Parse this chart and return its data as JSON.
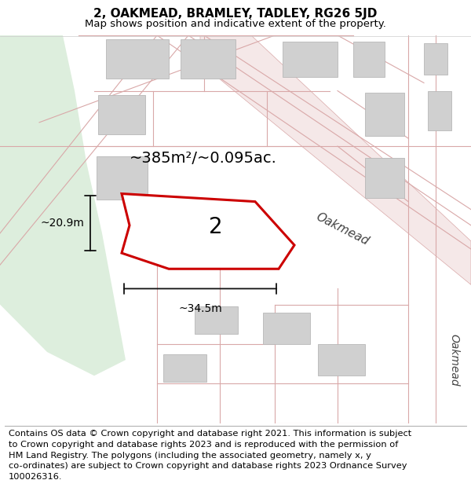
{
  "title": "2, OAKMEAD, BRAMLEY, TADLEY, RG26 5JD",
  "subtitle": "Map shows position and indicative extent of the property.",
  "title_fontsize": 11,
  "subtitle_fontsize": 9.5,
  "bg_color": "#ffffff",
  "map_bg_color": "#f5f5f3",
  "green_area_color": "#ddeedd",
  "road_fill_color": "#f5e8e8",
  "road_stroke": "#d9a8a8",
  "building_color": "#d0d0d0",
  "building_stroke": "#b8b8b8",
  "highlight_fill": "#ffffff",
  "highlight_stroke": "#cc0000",
  "highlight_lw": 2.2,
  "dim_color": "#111111",
  "annotation_area": "~385m²/~0.095ac.",
  "annotation_width": "~34.5m",
  "annotation_height": "~20.9m",
  "label_2": "2",
  "oakmead_label_diag": "Oakmead",
  "oakmead_label_vert": "Oakmead",
  "footer_text": "Contains OS data © Crown copyright and database right 2021. This information is subject\nto Crown copyright and database rights 2023 and is reproduced with the permission of\nHM Land Registry. The polygons (including the associated geometry, namely x, y\nco-ordinates) are subject to Crown copyright and database rights 2023 Ordnance Survey\n100026316.",
  "footer_fontsize": 8.2
}
